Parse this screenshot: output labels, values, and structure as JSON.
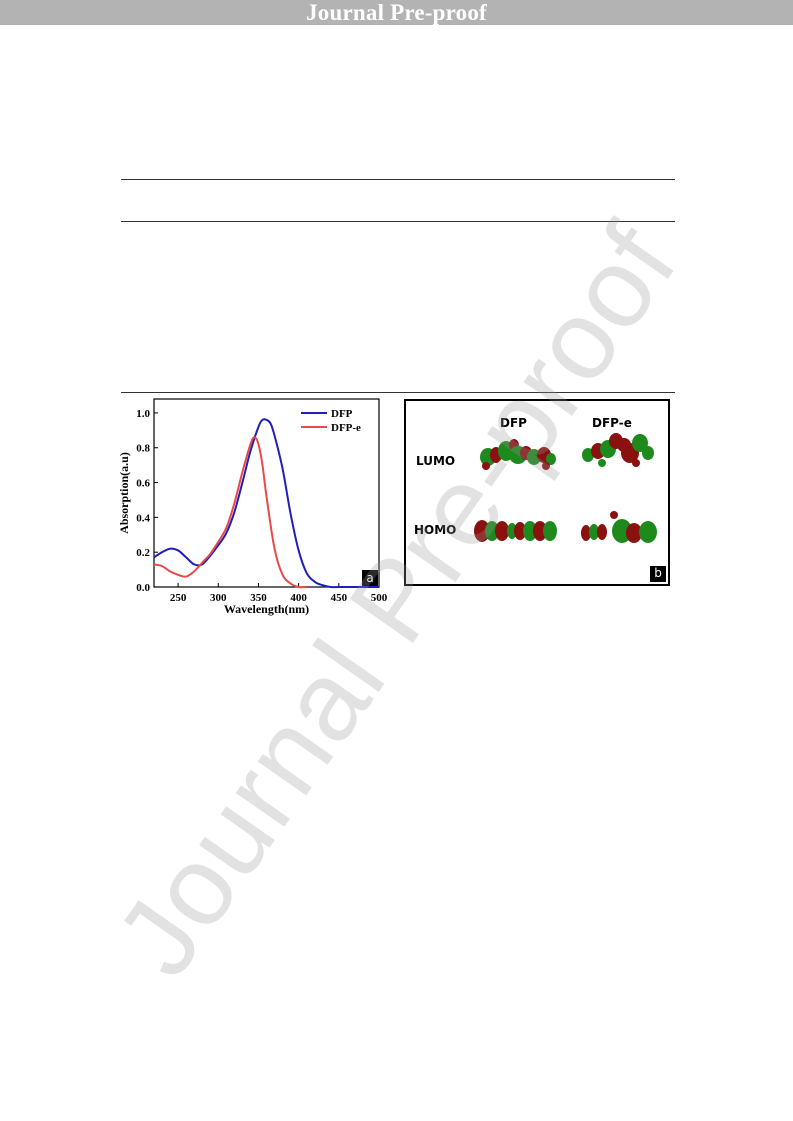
{
  "header": {
    "banner_text": "Journal Pre-proof"
  },
  "watermark_text": "Journal Pre-proof",
  "figure": {
    "panel_a": {
      "label": "a",
      "chart_data": {
        "type": "line",
        "xlabel": "Wavelength(nm)",
        "ylabel": "Absorption(a.u)",
        "xlim": [
          220,
          500
        ],
        "ylim": [
          0,
          1.08
        ],
        "x_ticks": [
          250,
          300,
          350,
          400,
          450,
          500
        ],
        "y_ticks": [
          0.0,
          0.2,
          0.4,
          0.6,
          0.8,
          1.0
        ],
        "x_tick_labels": [
          "250",
          "300",
          "350",
          "400",
          "450",
          "500"
        ],
        "y_tick_labels": [
          "0.0",
          "0.2",
          "0.4",
          "0.6",
          "0.8",
          "1.0"
        ],
        "legend_position": "top-right",
        "grid": false,
        "series": [
          {
            "name": "DFP",
            "color": "#1f1fbf",
            "x": [
              220,
              230,
              240,
              250,
              260,
              270,
              280,
              290,
              300,
              310,
              320,
              330,
              340,
              350,
              355,
              360,
              365,
              370,
              380,
              390,
              400,
              410,
              420,
              430,
              440,
              450,
              470,
              500
            ],
            "y": [
              0.17,
              0.2,
              0.22,
              0.21,
              0.17,
              0.13,
              0.13,
              0.18,
              0.24,
              0.31,
              0.43,
              0.6,
              0.78,
              0.92,
              0.96,
              0.96,
              0.94,
              0.87,
              0.68,
              0.42,
              0.21,
              0.08,
              0.03,
              0.01,
              0.0,
              0.0,
              0.0,
              0.0
            ]
          },
          {
            "name": "DFP-e",
            "color": "#e84a4a",
            "x": [
              220,
              230,
              240,
              250,
              260,
              270,
              280,
              290,
              300,
              310,
              320,
              330,
              340,
              345,
              350,
              355,
              360,
              370,
              380,
              390,
              400,
              410
            ],
            "y": [
              0.13,
              0.12,
              0.09,
              0.07,
              0.06,
              0.09,
              0.14,
              0.19,
              0.26,
              0.34,
              0.48,
              0.66,
              0.82,
              0.86,
              0.82,
              0.7,
              0.52,
              0.22,
              0.07,
              0.02,
              0.0,
              0.0
            ]
          }
        ]
      }
    },
    "panel_b": {
      "label": "b",
      "col_labels": [
        "DFP",
        "DFP-e"
      ],
      "row_labels": [
        "LUMO",
        "HOMO"
      ],
      "orbital_colors": {
        "positive": "#1e8a1e",
        "negative": "#8b1010"
      }
    }
  }
}
